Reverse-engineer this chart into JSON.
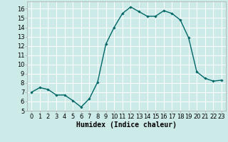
{
  "x": [
    0,
    1,
    2,
    3,
    4,
    5,
    6,
    7,
    8,
    9,
    10,
    11,
    12,
    13,
    14,
    15,
    16,
    17,
    18,
    19,
    20,
    21,
    22,
    23
  ],
  "y": [
    7.0,
    7.5,
    7.3,
    6.7,
    6.7,
    6.1,
    5.4,
    6.3,
    8.1,
    12.2,
    14.0,
    15.5,
    16.2,
    15.7,
    15.2,
    15.2,
    15.8,
    15.5,
    14.8,
    12.9,
    9.2,
    8.5,
    8.2,
    8.3
  ],
  "line_color": "#006666",
  "marker": "D",
  "marker_size": 1.8,
  "bg_color": "#cceae8",
  "grid_color": "#ffffff",
  "xlabel": "Humidex (Indice chaleur)",
  "xlim": [
    -0.5,
    23.5
  ],
  "ylim": [
    5,
    16.8
  ],
  "yticks": [
    5,
    6,
    7,
    8,
    9,
    10,
    11,
    12,
    13,
    14,
    15,
    16
  ],
  "xtick_labels": [
    "0",
    "1",
    "2",
    "3",
    "4",
    "5",
    "6",
    "7",
    "8",
    "9",
    "10",
    "11",
    "12",
    "13",
    "14",
    "15",
    "16",
    "17",
    "18",
    "19",
    "20",
    "21",
    "22",
    "23"
  ],
  "xlabel_fontsize": 7,
  "tick_fontsize": 6,
  "line_width": 1.0
}
